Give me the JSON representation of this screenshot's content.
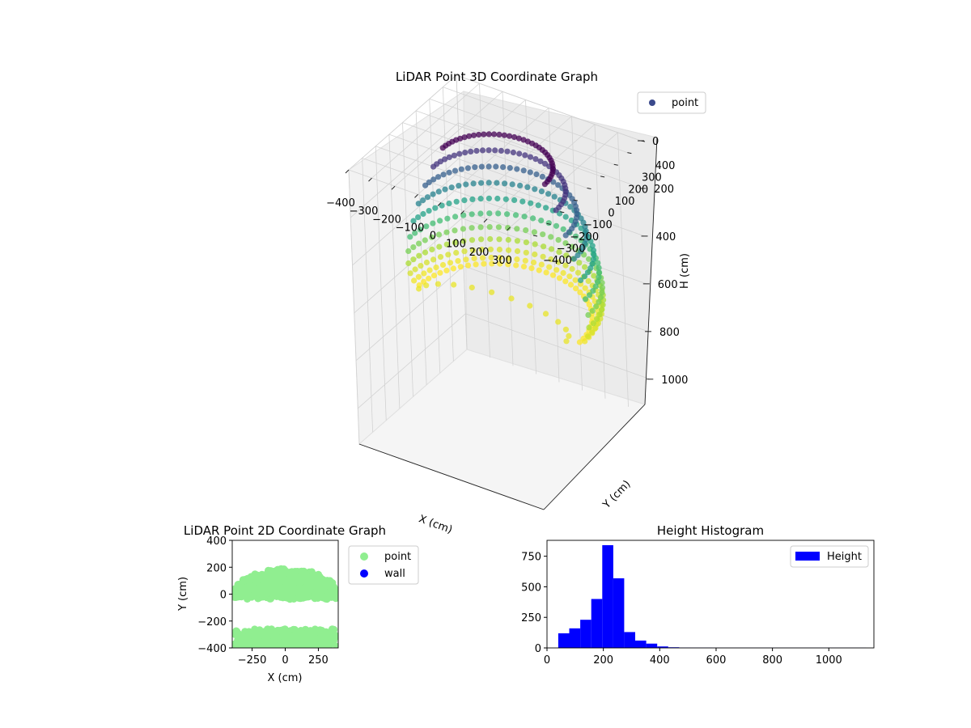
{
  "chart_data": [
    {
      "type": "scatter",
      "projection": "3d",
      "title": "LiDAR Point 3D Coordinate Graph",
      "xlabel": "X (cm)",
      "ylabel": "Y (cm)",
      "zlabel": "H (cm)",
      "xlim": [
        -400,
        400
      ],
      "ylim": [
        -400,
        400
      ],
      "zlim": [
        0,
        1150
      ],
      "zaxis_inverted": true,
      "xticks": [
        "−400",
        "−300",
        "−200",
        "−100",
        "0",
        "100",
        "200",
        "300"
      ],
      "yticks": [
        "−400",
        "−300",
        "−200",
        "−100",
        "0",
        "100",
        "200",
        "300",
        "400"
      ],
      "zticks": [
        "0",
        "200",
        "400",
        "600",
        "800",
        "1000"
      ],
      "colormap": "viridis",
      "legend": {
        "position": "top-right",
        "entries": [
          {
            "label": "point",
            "color": "#3b4a8c"
          }
        ]
      },
      "series": [
        {
          "name": "point",
          "shape": "dome of points over the upper half (Y > 0), radius ≈ 400 cm, heights ≈ 50–650 cm"
        }
      ],
      "grid": true
    },
    {
      "type": "scatter",
      "title": "LiDAR Point 2D Coordinate Graph",
      "xlabel": "X (cm)",
      "ylabel": "Y (cm)",
      "xlim": [
        -400,
        400
      ],
      "ylim": [
        -400,
        400
      ],
      "xticks": [
        "−250",
        "0",
        "250"
      ],
      "yticks": [
        "−400",
        "−200",
        "0",
        "200",
        "400"
      ],
      "legend": {
        "position": "outside-right",
        "entries": [
          {
            "label": "point",
            "color": "#90ee90"
          },
          {
            "label": "wall",
            "color": "#0000ff"
          }
        ]
      }
    },
    {
      "type": "bar",
      "subtype": "histogram",
      "title": "Height Histogram",
      "xlabel": "",
      "ylabel": "",
      "xlim": [
        0,
        1160
      ],
      "ylim": [
        0,
        880
      ],
      "xticks": [
        "0",
        "200",
        "400",
        "600",
        "800",
        "1000"
      ],
      "yticks": [
        "0",
        "250",
        "500",
        "750"
      ],
      "color": "#0000ff",
      "legend": {
        "position": "top-right",
        "entries": [
          {
            "label": "Height",
            "color": "#0000ff"
          }
        ]
      },
      "bin_edges": [
        40,
        79,
        118,
        157,
        196,
        235,
        274,
        313,
        352,
        391,
        430,
        469,
        508,
        547,
        586,
        625,
        664,
        703,
        742,
        781,
        820,
        859,
        898,
        937,
        976,
        1015,
        1054,
        1093,
        1132
      ],
      "counts": [
        120,
        160,
        230,
        400,
        840,
        570,
        130,
        60,
        35,
        12,
        5,
        3,
        2,
        2,
        1,
        1,
        1,
        1,
        1,
        1,
        1,
        1,
        1,
        1,
        1,
        1,
        1,
        1
      ]
    }
  ]
}
